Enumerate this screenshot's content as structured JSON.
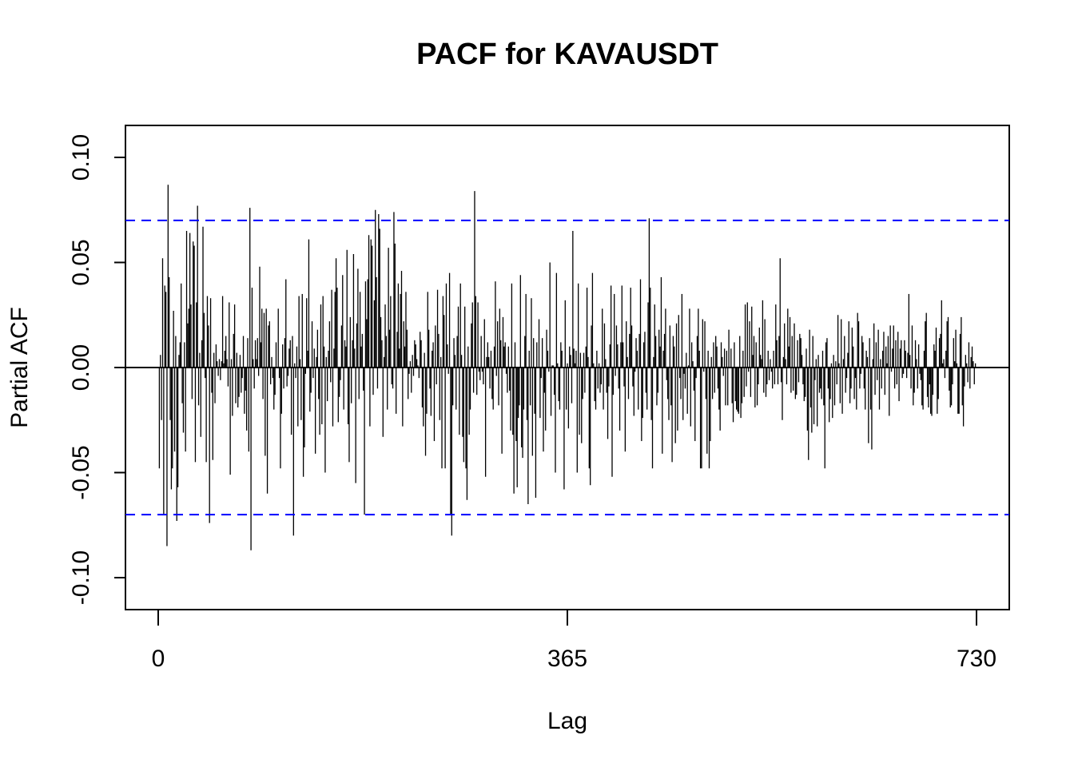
{
  "chart_data": {
    "type": "bar",
    "title": "PACF for KAVAUSDT",
    "xlabel": "Lag",
    "ylabel": "Partial ACF",
    "xlim": [
      0,
      730
    ],
    "ylim": [
      -0.115,
      0.115
    ],
    "x_ticks": [
      0,
      365,
      730
    ],
    "x_tick_labels": [
      "0",
      "365",
      "730"
    ],
    "y_ticks": [
      -0.1,
      -0.05,
      0.0,
      0.05,
      0.1
    ],
    "y_tick_labels": [
      "-0.10",
      "-0.05",
      "0.00",
      "0.05",
      "0.10"
    ],
    "confidence_bound": 0.07,
    "confidence_color": "#0000ff",
    "bar_color": "#000000",
    "grid": false,
    "lags_start": 1,
    "values": [
      -0.048,
      0.006,
      -0.025,
      0.052,
      -0.07,
      0.039,
      0.036,
      -0.085,
      0.087,
      0.043,
      -0.025,
      -0.058,
      -0.048,
      0.027,
      -0.04,
      0.015,
      -0.073,
      -0.057,
      0.006,
      0.012,
      0.04,
      -0.017,
      -0.031,
      0.012,
      -0.04,
      0.065,
      0.021,
      0.028,
      0.064,
      0.03,
      -0.015,
      0.06,
      0.058,
      -0.045,
      0.031,
      0.077,
      -0.018,
      0.007,
      -0.033,
      0.013,
      0.067,
      0.026,
      -0.005,
      -0.045,
      0.034,
      0.02,
      -0.074,
      0.033,
      -0.012,
      -0.044,
      0.007,
      -0.017,
      0.011,
      0.003,
      -0.004,
      0.004,
      -0.006,
      0.003,
      0.034,
      0.002,
      0.008,
      0.015,
      0.004,
      -0.009,
      0.031,
      -0.051,
      0.004,
      -0.023,
      0.016,
      0.03,
      -0.017,
      0.007,
      -0.019,
      -0.014,
      0.006,
      -0.012,
      -0.005,
      0.015,
      -0.022,
      -0.011,
      -0.03,
      0.014,
      -0.04,
      0.076,
      -0.087,
      0.038,
      0.004,
      -0.01,
      0.013,
      0.004,
      0.014,
      -0.004,
      0.048,
      0.012,
      0.028,
      -0.015,
      0.026,
      -0.042,
      0.028,
      -0.06,
      0.02,
      0.022,
      -0.008,
      0.005,
      -0.005,
      -0.02,
      -0.013,
      0.012,
      0.0,
      0.028,
      -0.005,
      -0.048,
      -0.022,
      0.011,
      -0.01,
      0.014,
      0.042,
      -0.009,
      -0.004,
      0.009,
      0.013,
      -0.032,
      0.015,
      -0.08,
      0.002,
      -0.005,
      0.01,
      -0.028,
      0.034,
      0.004,
      -0.025,
      0.035,
      -0.052,
      -0.038,
      -0.003,
      0.033,
      0.008,
      0.061,
      -0.021,
      -0.012,
      0.022,
      -0.005,
      0.009,
      -0.041,
      0.005,
      0.018,
      -0.015,
      -0.032,
      0.03,
      -0.027,
      0.034,
      0.01,
      -0.05,
      0.005,
      -0.016,
      0.008,
      0.022,
      -0.007,
      0.037,
      -0.028,
      0.009,
      0.036,
      0.052,
      0.038,
      -0.026,
      -0.014,
      -0.006,
      0.02,
      0.044,
      -0.02,
      0.013,
      0.01,
      0.056,
      -0.027,
      -0.045,
      0.024,
      -0.017,
      0.013,
      0.054,
      0.009,
      -0.055,
      0.021,
      0.047,
      -0.015,
      0.036,
      0.01,
      0.016,
      -0.011,
      -0.07,
      0.041,
      0.023,
      0.042,
      0.063,
      -0.028,
      0.061,
      0.058,
      -0.013,
      0.032,
      0.075,
      0.043,
      -0.01,
      0.073,
      0.066,
      0.024,
      0.013,
      -0.033,
      0.005,
      0.03,
      0.015,
      -0.02,
      0.057,
      0.018,
      0.034,
      -0.008,
      -0.01,
      0.074,
      0.059,
      -0.022,
      0.017,
      0.04,
      0.009,
      0.035,
      0.046,
      -0.028,
      0.022,
      0.01,
      0.036,
      0.018,
      -0.015,
      -0.003,
      0.003,
      -0.012,
      0.006,
      -0.004,
      0.013,
      0.011,
      0.004,
      0.001,
      -0.005,
      0.017,
      0.013,
      -0.019,
      -0.028,
      0.007,
      -0.042,
      -0.022,
      0.036,
      0.018,
      -0.01,
      -0.023,
      0.008,
      0.012,
      -0.035,
      0.02,
      -0.008,
      0.037,
      0.016,
      -0.025,
      0.005,
      -0.048,
      0.034,
      0.025,
      -0.048,
      0.04,
      0.011,
      -0.003,
      0.045,
      -0.07,
      -0.08,
      -0.018,
      0.014,
      0.006,
      -0.02,
      0.015,
      0.029,
      -0.032,
      0.04,
      0.006,
      -0.033,
      -0.045,
      0.029,
      -0.048,
      -0.063,
      0.01,
      -0.032,
      -0.02,
      0.021,
      0.031,
      -0.012,
      0.084,
      0.034,
      -0.013,
      0.031,
      -0.002,
      -0.006,
      0.015,
      -0.002,
      -0.008,
      0.023,
      -0.052,
      0.005,
      0.012,
      0.005,
      -0.01,
      0.008,
      -0.015,
      -0.02,
      0.01,
      0.041,
      -0.004,
      0.022,
      -0.018,
      0.028,
      0.013,
      -0.041,
      0.024,
      0.01,
      0.012,
      -0.003,
      -0.012,
      0.01,
      -0.011,
      -0.03,
      0.04,
      -0.032,
      -0.06,
      0.012,
      -0.035,
      -0.057,
      -0.024,
      -0.018,
      0.044,
      -0.038,
      -0.043,
      -0.02,
      0.015,
      0.035,
      -0.025,
      -0.065,
      0.008,
      -0.018,
      0.033,
      -0.042,
      0.014,
      -0.022,
      -0.062,
      0.012,
      0.0,
      0.023,
      -0.024,
      -0.005,
      0.014,
      -0.04,
      -0.012,
      -0.03,
      0.018,
      0.008,
      -0.002,
      0.05,
      -0.023,
      0.001,
      0.001,
      -0.013,
      -0.05,
      0.045,
      0.002,
      -0.016,
      -0.02,
      0.012,
      0.008,
      0.0,
      -0.058,
      0.032,
      -0.02,
      0.002,
      -0.029,
      0.01,
      0.006,
      -0.017,
      0.065,
      0.009,
      0.002,
      0.008,
      -0.05,
      0.04,
      -0.032,
      0.007,
      -0.036,
      -0.015,
      0.007,
      -0.012,
      0.01,
      0.038,
      0.005,
      -0.048,
      -0.056,
      0.02,
      0.045,
      0.002,
      -0.016,
      -0.02,
      0.008,
      -0.01,
      0.002,
      -0.012,
      -0.008,
      0.028,
      -0.02,
      0.021,
      0.004,
      -0.012,
      -0.034,
      -0.009,
      0.011,
      0.039,
      -0.052,
      -0.013,
      0.035,
      -0.004,
      0.02,
      0.011,
      -0.01,
      -0.03,
      0.012,
      0.039,
      0.012,
      -0.009,
      -0.04,
      0.022,
      0.005,
      -0.015,
      0.016,
      0.038,
      0.02,
      -0.009,
      -0.023,
      -0.002,
      0.014,
      0.008,
      -0.02,
      0.016,
      0.042,
      -0.035,
      -0.024,
      0.012,
      0.017,
      -0.012,
      -0.02,
      0.031,
      0.071,
      0.038,
      -0.025,
      -0.048,
      0.005,
      0.03,
      0.015,
      -0.018,
      -0.012,
      0.018,
      0.01,
      0.043,
      -0.041,
      0.008,
      0.016,
      0.028,
      -0.006,
      -0.015,
      -0.025,
      0.02,
      -0.018,
      -0.045,
      0.015,
      0.01,
      -0.036,
      0.021,
      -0.03,
      0.025,
      -0.005,
      -0.015,
      0.035,
      -0.025,
      -0.003,
      -0.01,
      0.007,
      -0.022,
      0.001,
      0.028,
      -0.028,
      0.012,
      0.003,
      -0.011,
      -0.035,
      -0.005,
      0.015,
      0.028,
      0.008,
      -0.048,
      -0.048,
      0.023,
      -0.002,
      0.022,
      -0.015,
      -0.041,
      0.008,
      -0.048,
      -0.035,
      0.005,
      -0.015,
      0.012,
      -0.012,
      0.015,
      0.01,
      -0.01,
      -0.02,
      -0.03,
      0.012,
      0.005,
      -0.004,
      0.009,
      -0.018,
      0.008,
      -0.018,
      0.018,
      0.0,
      0.009,
      -0.017,
      -0.026,
      0.012,
      -0.016,
      -0.02,
      -0.021,
      -0.022,
      0.015,
      -0.024,
      -0.017,
      0.008,
      -0.014,
      0.03,
      -0.009,
      0.031,
      -0.002,
      0.022,
      -0.014,
      0.029,
      0.006,
      0.015,
      -0.019,
      0.012,
      -0.018,
      -0.008,
      0.019,
      0.006,
      0.004,
      0.032,
      -0.012,
      0.023,
      -0.014,
      -0.008,
      0.008,
      -0.006,
      0.004,
      -0.002,
      -0.01,
      0.008,
      -0.008,
      0.03,
      0.013,
      -0.008,
      0.015,
      0.052,
      -0.007,
      -0.025,
      0.005,
      0.021,
      0.004,
      -0.008,
      0.028,
      0.01,
      0.024,
      -0.012,
      0.015,
      -0.011,
      0.021,
      -0.015,
      -0.013,
      0.013,
      -0.007,
      0.016,
      0.014,
      0.006,
      -0.008,
      -0.016,
      -0.014,
      0.009,
      -0.03,
      -0.044,
      0.018,
      -0.019,
      -0.031,
      0.015,
      -0.027,
      -0.006,
      0.004,
      -0.028,
      0.006,
      -0.012,
      -0.01,
      -0.015,
      0.008,
      -0.018,
      -0.048,
      0.012,
      0.014,
      -0.01,
      -0.026,
      -0.015,
      0.002,
      -0.024,
      0.006,
      -0.018,
      0.003,
      -0.008,
      0.025,
      0.002,
      -0.017,
      0.023,
      -0.022,
      0.004,
      0.015,
      -0.012,
      -0.005,
      0.007,
      0.022,
      -0.017,
      -0.01,
      0.019,
      0.01,
      -0.015,
      -0.005,
      -0.02,
      0.026,
      0.022,
      -0.01,
      -0.003,
      0.015,
      0.012,
      -0.01,
      -0.02,
      0.008,
      0.005,
      -0.036,
      0.014,
      -0.02,
      -0.039,
      0.004,
      0.021,
      -0.013,
      0.012,
      -0.006,
      0.018,
      -0.02,
      0.004,
      -0.01,
      0.008,
      0.017,
      -0.013,
      0.01,
      0.002,
      0.015,
      -0.023,
      0.02,
      -0.002,
      0.009,
      0.02,
      -0.01,
      0.013,
      -0.008,
      0.017,
      -0.016,
      0.009,
      0.013,
      -0.005,
      -0.003,
      0.013,
      0.008,
      -0.005,
      0.007,
      0.035,
      0.006,
      -0.01,
      0.02,
      -0.018,
      -0.012,
      0.013,
      0.004,
      -0.01,
      0.011,
      -0.003,
      -0.006,
      -0.018,
      -0.02,
      0.008,
      0.022,
      0.026,
      -0.014,
      -0.019,
      -0.008,
      -0.022,
      -0.023,
      -0.013,
      0.011,
      0.008,
      0.019,
      -0.022,
      -0.015,
      0.014,
      0.016,
      0.032,
      0.002,
      0.004,
      -0.005,
      0.008,
      0.022,
      0.024,
      -0.011,
      -0.019,
      -0.018,
      -0.008,
      0.014,
      0.003,
      0.018,
      0.002,
      -0.022,
      -0.022,
      0.016,
      0.024,
      -0.018,
      -0.028,
      -0.009,
      0.006,
      0.002,
      -0.007,
      0.012,
      -0.01,
      0.005,
      0.01,
      0.003,
      -0.008,
      0.002,
      0.0
    ]
  }
}
